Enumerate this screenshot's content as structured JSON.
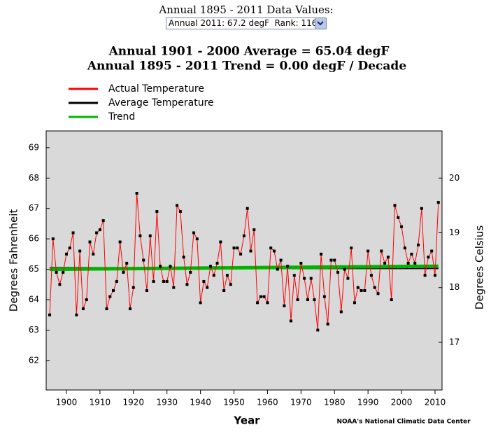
{
  "header": {
    "title": "Annual 1895 - 2011 Data Values:",
    "dropdown": "Annual 2011: 67.2 degF  Rank: 116"
  },
  "chart_data": {
    "type": "line",
    "title": "Annual 1901 - 2000 Average = 65.04 degF",
    "subtitle": "Annual 1895 - 2011 Trend = 0.00 degF / Decade",
    "xlabel": "Year",
    "ylabel": "Degrees Fahrenheit",
    "y2label": "Degrees Celsius",
    "credit": "NOAA's National Climatic Data Center",
    "x": [
      1895,
      1896,
      1897,
      1898,
      1899,
      1900,
      1901,
      1902,
      1903,
      1904,
      1905,
      1906,
      1907,
      1908,
      1909,
      1910,
      1911,
      1912,
      1913,
      1914,
      1915,
      1916,
      1917,
      1918,
      1919,
      1920,
      1921,
      1922,
      1923,
      1924,
      1925,
      1926,
      1927,
      1928,
      1929,
      1930,
      1931,
      1932,
      1933,
      1934,
      1935,
      1936,
      1937,
      1938,
      1939,
      1940,
      1941,
      1942,
      1943,
      1944,
      1945,
      1946,
      1947,
      1948,
      1949,
      1950,
      1951,
      1952,
      1953,
      1954,
      1955,
      1956,
      1957,
      1958,
      1959,
      1960,
      1961,
      1962,
      1963,
      1964,
      1965,
      1966,
      1967,
      1968,
      1969,
      1970,
      1971,
      1972,
      1973,
      1974,
      1975,
      1976,
      1977,
      1978,
      1979,
      1980,
      1981,
      1982,
      1983,
      1984,
      1985,
      1986,
      1987,
      1988,
      1989,
      1990,
      1991,
      1992,
      1993,
      1994,
      1995,
      1996,
      1997,
      1998,
      1999,
      2000,
      2001,
      2002,
      2003,
      2004,
      2005,
      2006,
      2007,
      2008,
      2009,
      2010,
      2011
    ],
    "series": [
      {
        "name": "Actual Temperature",
        "color": "#ff0000",
        "values": [
          63.5,
          66.0,
          64.9,
          64.5,
          64.9,
          65.5,
          65.7,
          66.2,
          63.5,
          65.6,
          63.7,
          64.0,
          65.9,
          65.5,
          66.2,
          66.3,
          66.6,
          63.7,
          64.1,
          64.3,
          64.6,
          65.9,
          64.9,
          65.2,
          63.7,
          64.4,
          67.5,
          66.1,
          65.3,
          64.3,
          66.1,
          64.6,
          66.9,
          65.1,
          64.6,
          64.6,
          65.1,
          64.4,
          67.1,
          66.9,
          65.4,
          64.5,
          64.9,
          66.2,
          66.0,
          63.9,
          64.6,
          64.4,
          65.1,
          64.8,
          65.2,
          65.9,
          64.3,
          64.8,
          64.5,
          65.7,
          65.7,
          65.5,
          66.1,
          67.0,
          65.6,
          66.3,
          63.9,
          64.1,
          64.1,
          63.9,
          65.7,
          65.6,
          65.0,
          65.3,
          63.8,
          65.1,
          63.3,
          64.8,
          64.0,
          65.2,
          64.7,
          64.0,
          64.7,
          64.0,
          63.0,
          65.5,
          64.1,
          63.2,
          65.3,
          65.3,
          64.9,
          63.6,
          65.0,
          64.7,
          65.7,
          63.9,
          64.4,
          64.3,
          64.3,
          65.6,
          64.8,
          64.4,
          64.2,
          65.6,
          65.2,
          65.4,
          64.0,
          67.1,
          66.7,
          66.4,
          65.7,
          65.2,
          65.5,
          65.2,
          65.8,
          67.0,
          64.8,
          65.4,
          65.6,
          64.8,
          67.2
        ]
      },
      {
        "name": "Average Temperature",
        "color": "#000000",
        "x": [
          1895,
          2011
        ],
        "values": [
          65.04,
          65.04
        ]
      },
      {
        "name": "Trend",
        "color": "#00b400",
        "x": [
          1895,
          2011
        ],
        "values": [
          65.0,
          65.1
        ]
      }
    ],
    "xlim": [
      1893.95,
      2012.09
    ],
    "ylim": [
      61.03,
      69.55
    ],
    "y2lim": [
      16.13,
      20.86
    ],
    "xticks": [
      1900,
      1910,
      1920,
      1930,
      1940,
      1950,
      1960,
      1970,
      1980,
      1990,
      2000,
      2010
    ],
    "yticks": [
      62,
      63,
      64,
      65,
      66,
      67,
      68,
      69
    ],
    "y2ticks": [
      17,
      18,
      19,
      20
    ],
    "marker_color": "#000000",
    "background": "#d9d9d9"
  }
}
